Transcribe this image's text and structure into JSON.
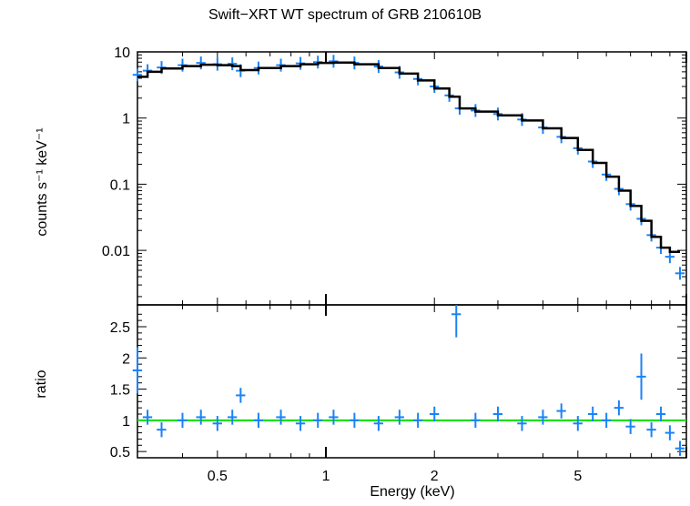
{
  "chart_data": [
    {
      "panel": "spectrum",
      "type": "scatter",
      "title": "Swift−XRT WT spectrum of GRB 210610B",
      "xlabel": "",
      "ylabel": "counts s⁻¹ keV⁻¹",
      "x_scale": "log",
      "y_scale": "log",
      "xlim": [
        0.3,
        10
      ],
      "ylim": [
        0.0015,
        10
      ],
      "yticks": [
        "10",
        "1",
        "0.1",
        "0.01"
      ],
      "series": [
        {
          "role": "data",
          "color": "#1a82f7",
          "x": [
            0.3,
            0.32,
            0.35,
            0.4,
            0.45,
            0.5,
            0.55,
            0.58,
            0.65,
            0.75,
            0.85,
            0.95,
            1.05,
            1.2,
            1.4,
            1.6,
            1.8,
            2.0,
            2.2,
            2.35,
            2.6,
            3.0,
            3.5,
            4.0,
            4.5,
            5.0,
            5.5,
            6.0,
            6.5,
            7.0,
            7.5,
            8.0,
            8.5,
            9.0,
            9.6
          ],
          "y": [
            4.5,
            5.2,
            5.8,
            6.3,
            6.8,
            6.5,
            6.6,
            5.2,
            5.7,
            6.3,
            6.7,
            7.0,
            7.2,
            6.8,
            6.0,
            4.9,
            3.9,
            3.0,
            2.2,
            1.4,
            1.3,
            1.15,
            0.95,
            0.72,
            0.52,
            0.35,
            0.22,
            0.14,
            0.085,
            0.05,
            0.03,
            0.017,
            0.011,
            0.008,
            0.0045
          ]
        },
        {
          "role": "model",
          "color": "#000000",
          "x": [
            0.3,
            0.32,
            0.35,
            0.4,
            0.45,
            0.5,
            0.55,
            0.58,
            0.65,
            0.75,
            0.85,
            0.95,
            1.05,
            1.2,
            1.4,
            1.6,
            1.8,
            2.0,
            2.2,
            2.35,
            2.6,
            3.0,
            3.5,
            4.0,
            4.5,
            5.0,
            5.5,
            6.0,
            6.5,
            7.0,
            7.5,
            8.0,
            8.5,
            9.0,
            9.6
          ],
          "y": [
            4.2,
            5.0,
            5.6,
            6.1,
            6.4,
            6.3,
            6.1,
            5.3,
            5.7,
            6.1,
            6.5,
            6.8,
            6.9,
            6.5,
            5.7,
            4.7,
            3.7,
            2.8,
            2.1,
            1.4,
            1.25,
            1.1,
            0.92,
            0.7,
            0.5,
            0.33,
            0.21,
            0.13,
            0.08,
            0.047,
            0.028,
            0.016,
            0.011,
            0.0095,
            0.0095
          ]
        }
      ]
    },
    {
      "panel": "ratio",
      "type": "scatter",
      "xlabel": "Energy (keV)",
      "ylabel": "ratio",
      "x_scale": "log",
      "y_scale": "linear",
      "xlim": [
        0.3,
        10
      ],
      "ylim": [
        0.4,
        2.85
      ],
      "yticks": [
        "0.5",
        "1",
        "1.5",
        "2",
        "2.5"
      ],
      "xticks": [
        "0.5",
        "1",
        "2",
        "5"
      ],
      "reference_line": {
        "y": 1,
        "color": "#00e000"
      },
      "series": [
        {
          "role": "ratio",
          "color": "#1a82f7",
          "x": [
            0.3,
            0.32,
            0.35,
            0.4,
            0.45,
            0.5,
            0.55,
            0.58,
            0.65,
            0.75,
            0.85,
            0.95,
            1.05,
            1.2,
            1.4,
            1.6,
            1.8,
            2.0,
            2.3,
            2.6,
            3.0,
            3.5,
            4.0,
            4.5,
            5.0,
            5.5,
            6.0,
            6.5,
            7.0,
            7.5,
            8.0,
            8.5,
            9.0,
            9.6
          ],
          "y": [
            1.8,
            1.05,
            0.85,
            1.0,
            1.05,
            0.95,
            1.05,
            1.4,
            1.0,
            1.05,
            0.95,
            1.0,
            1.05,
            1.0,
            0.95,
            1.05,
            1.0,
            1.1,
            2.7,
            1.0,
            1.1,
            0.95,
            1.05,
            1.15,
            0.95,
            1.1,
            1.0,
            1.2,
            0.9,
            1.7,
            0.85,
            1.1,
            0.8,
            0.55
          ]
        }
      ]
    }
  ]
}
